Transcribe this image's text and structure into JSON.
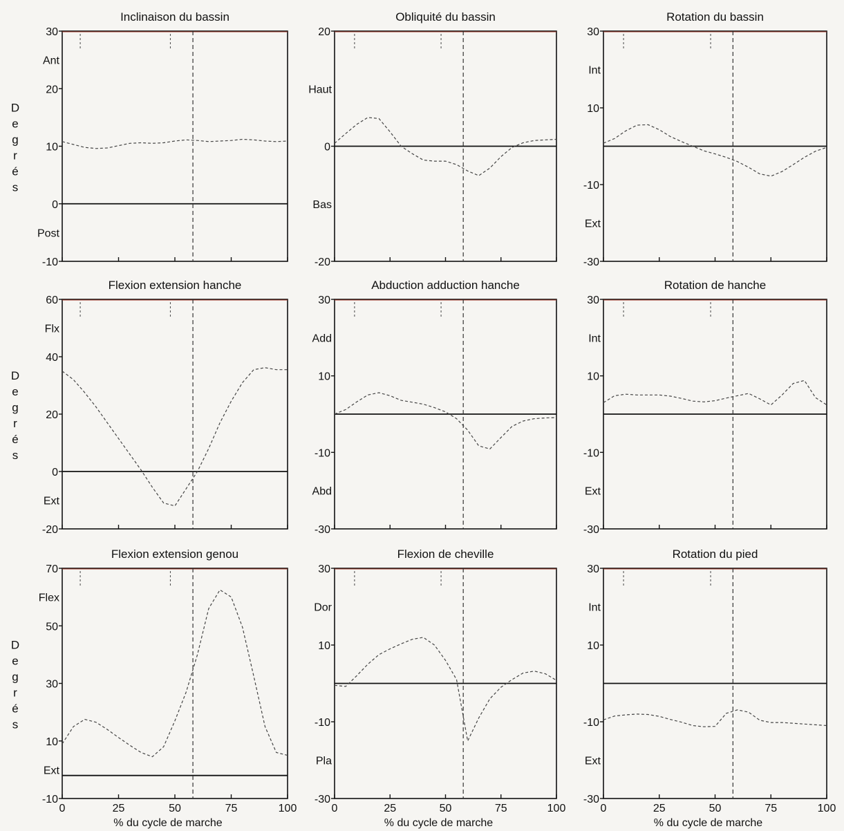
{
  "figure": {
    "ylabel_letters": [
      "D",
      "e",
      "g",
      "r",
      "é",
      "s"
    ],
    "xlabel": "% du cycle de marche"
  },
  "chart_data": [
    {
      "type": "line",
      "title": "Inclinaison du bassin",
      "ylim": [
        -10,
        30
      ],
      "yticks": [
        -10,
        0,
        10,
        20,
        30
      ],
      "xlim": [
        0,
        100
      ],
      "xticks": [
        0,
        25,
        50,
        75,
        100
      ],
      "x_tick_labels_shown": false,
      "region_labels": [
        {
          "text": "Ant",
          "y": 25
        },
        {
          "text": "Post",
          "y": -5
        }
      ],
      "reference_lines": [
        {
          "y": 0,
          "style": "solid"
        },
        {
          "x": 58,
          "style": "dashed"
        }
      ],
      "top_markers_x": [
        8,
        48
      ],
      "series": [
        {
          "x": [
            0,
            5,
            10,
            15,
            20,
            25,
            30,
            35,
            40,
            45,
            50,
            55,
            60,
            65,
            70,
            75,
            80,
            85,
            90,
            95,
            100
          ],
          "y": [
            10.8,
            10.3,
            9.8,
            9.6,
            9.7,
            10.1,
            10.5,
            10.6,
            10.5,
            10.6,
            10.9,
            11.1,
            11,
            10.8,
            10.9,
            11,
            11.2,
            11.1,
            10.9,
            10.8,
            10.9
          ]
        }
      ]
    },
    {
      "type": "line",
      "title": "Obliquité du bassin",
      "ylim": [
        -20,
        20
      ],
      "yticks": [
        -20,
        0,
        20
      ],
      "xlim": [
        0,
        100
      ],
      "xticks": [
        0,
        25,
        50,
        75,
        100
      ],
      "x_tick_labels_shown": false,
      "region_labels": [
        {
          "text": "Haut",
          "y": 10
        },
        {
          "text": "Bas",
          "y": -10
        }
      ],
      "reference_lines": [
        {
          "y": 0,
          "style": "solid"
        },
        {
          "x": 58,
          "style": "dashed"
        }
      ],
      "top_markers_x": [
        9,
        48
      ],
      "series": [
        {
          "x": [
            0,
            5,
            10,
            15,
            20,
            25,
            30,
            35,
            40,
            45,
            50,
            55,
            60,
            65,
            70,
            75,
            80,
            85,
            90,
            95,
            100
          ],
          "y": [
            0.5,
            2.2,
            3.8,
            5,
            4.8,
            2.5,
            0,
            -1.3,
            -2.4,
            -2.6,
            -2.6,
            -3.2,
            -4.3,
            -5.1,
            -3.8,
            -1.8,
            -0.2,
            0.6,
            1,
            1.1,
            1.2
          ]
        }
      ]
    },
    {
      "type": "line",
      "title": "Rotation du bassin",
      "ylim": [
        -30,
        30
      ],
      "yticks": [
        -30,
        -10,
        10,
        30
      ],
      "xlim": [
        0,
        100
      ],
      "xticks": [
        0,
        25,
        50,
        75,
        100
      ],
      "x_tick_labels_shown": false,
      "region_labels": [
        {
          "text": "Int",
          "y": 20
        },
        {
          "text": "Ext",
          "y": -20
        }
      ],
      "reference_lines": [
        {
          "y": 0,
          "style": "solid"
        },
        {
          "x": 58,
          "style": "dashed"
        }
      ],
      "top_markers_x": [
        9,
        48
      ],
      "series": [
        {
          "x": [
            0,
            5,
            10,
            15,
            20,
            25,
            30,
            35,
            40,
            45,
            50,
            55,
            60,
            65,
            70,
            75,
            80,
            85,
            90,
            95,
            100
          ],
          "y": [
            0.8,
            2,
            4,
            5.5,
            5.6,
            4.3,
            2.5,
            1.2,
            0,
            -1.2,
            -2,
            -2.9,
            -4,
            -5.5,
            -7.2,
            -7.8,
            -6.6,
            -4.8,
            -2.9,
            -1.3,
            -0.3
          ]
        }
      ]
    },
    {
      "type": "line",
      "title": "Flexion  extension hanche",
      "ylim": [
        -20,
        60
      ],
      "yticks": [
        -20,
        0,
        20,
        40,
        60
      ],
      "xlim": [
        0,
        100
      ],
      "xticks": [
        0,
        25,
        50,
        75,
        100
      ],
      "x_tick_labels_shown": false,
      "region_labels": [
        {
          "text": "Flx",
          "y": 50
        },
        {
          "text": "Ext",
          "y": -10
        }
      ],
      "reference_lines": [
        {
          "y": 0,
          "style": "solid"
        },
        {
          "x": 58,
          "style": "dashed"
        }
      ],
      "top_markers_x": [
        8,
        48
      ],
      "series": [
        {
          "x": [
            0,
            5,
            10,
            15,
            20,
            25,
            30,
            35,
            40,
            45,
            50,
            55,
            60,
            65,
            70,
            75,
            80,
            85,
            90,
            95,
            100
          ],
          "y": [
            35,
            32,
            27.5,
            22.5,
            17,
            11.5,
            6,
            0.5,
            -5.5,
            -11,
            -12,
            -6,
            0,
            8,
            17,
            24.5,
            31,
            35.5,
            36.2,
            35.5,
            35.5
          ]
        }
      ]
    },
    {
      "type": "line",
      "title": "Abduction  adduction hanche",
      "ylim": [
        -30,
        30
      ],
      "yticks": [
        -30,
        -10,
        10,
        30
      ],
      "xlim": [
        0,
        100
      ],
      "xticks": [
        0,
        25,
        50,
        75,
        100
      ],
      "x_tick_labels_shown": false,
      "region_labels": [
        {
          "text": "Add",
          "y": 20
        },
        {
          "text": "Abd",
          "y": -20
        }
      ],
      "reference_lines": [
        {
          "y": 0,
          "style": "solid"
        },
        {
          "x": 58,
          "style": "dashed"
        }
      ],
      "top_markers_x": [
        9,
        48
      ],
      "series": [
        {
          "x": [
            0,
            5,
            10,
            15,
            20,
            25,
            30,
            35,
            40,
            45,
            50,
            55,
            60,
            65,
            70,
            75,
            80,
            85,
            90,
            95,
            100
          ],
          "y": [
            0,
            1.2,
            3.2,
            5,
            5.6,
            4.8,
            3.6,
            3.1,
            2.6,
            1.7,
            0.6,
            -1.2,
            -4.2,
            -8.3,
            -9.1,
            -6.1,
            -3.2,
            -1.8,
            -1.2,
            -1,
            -0.9
          ]
        }
      ]
    },
    {
      "type": "line",
      "title": "Rotation de hanche",
      "ylim": [
        -30,
        30
      ],
      "yticks": [
        -30,
        -10,
        10,
        30
      ],
      "xlim": [
        0,
        100
      ],
      "xticks": [
        0,
        25,
        50,
        75,
        100
      ],
      "x_tick_labels_shown": false,
      "region_labels": [
        {
          "text": "Int",
          "y": 20
        },
        {
          "text": "Ext",
          "y": -20
        }
      ],
      "reference_lines": [
        {
          "y": 0,
          "style": "solid"
        },
        {
          "x": 58,
          "style": "dashed"
        }
      ],
      "top_markers_x": [
        9,
        48
      ],
      "series": [
        {
          "x": [
            0,
            5,
            10,
            15,
            20,
            25,
            30,
            35,
            40,
            45,
            50,
            55,
            60,
            65,
            70,
            75,
            80,
            85,
            90,
            95,
            100
          ],
          "y": [
            3,
            4.8,
            5.2,
            5,
            5,
            5,
            4.7,
            4.1,
            3.4,
            3.2,
            3.5,
            4.2,
            4.8,
            5.4,
            4,
            2.4,
            5,
            8,
            8.8,
            4.3,
            2.4
          ]
        }
      ]
    },
    {
      "type": "line",
      "title": "Flexion extension genou",
      "ylim": [
        -10,
        70
      ],
      "yticks": [
        -10,
        10,
        30,
        50,
        70
      ],
      "xlim": [
        0,
        100
      ],
      "xticks": [
        0,
        25,
        50,
        75,
        100
      ],
      "xtick_labels": [
        "0",
        "25",
        "50",
        "75",
        "100"
      ],
      "xlabel": "% du cycle de marche",
      "region_labels": [
        {
          "text": "Flex",
          "y": 60
        },
        {
          "text": "Ext",
          "y": 0
        }
      ],
      "reference_lines": [
        {
          "y": -2,
          "style": "solid"
        },
        {
          "x": 58,
          "style": "dashed"
        }
      ],
      "top_markers_x": [
        8,
        48
      ],
      "series": [
        {
          "x": [
            0,
            5,
            10,
            15,
            20,
            25,
            30,
            35,
            40,
            45,
            50,
            55,
            60,
            65,
            70,
            75,
            80,
            85,
            90,
            95,
            100
          ],
          "y": [
            9,
            15,
            17.5,
            16.5,
            14,
            11.2,
            8.5,
            6,
            4.5,
            8,
            17,
            27,
            40,
            56,
            62.5,
            60,
            49.5,
            32.5,
            15,
            6,
            5
          ]
        }
      ]
    },
    {
      "type": "line",
      "title": "Flexion de cheville",
      "ylim": [
        -30,
        30
      ],
      "yticks": [
        -30,
        -10,
        10,
        30
      ],
      "xlim": [
        0,
        100
      ],
      "xticks": [
        0,
        25,
        50,
        75,
        100
      ],
      "xtick_labels": [
        "0",
        "25",
        "50",
        "75",
        "100"
      ],
      "xlabel": "% du cycle de marche",
      "region_labels": [
        {
          "text": "Dor",
          "y": 20
        },
        {
          "text": "Pla",
          "y": -20
        }
      ],
      "reference_lines": [
        {
          "y": 0,
          "style": "solid"
        },
        {
          "x": 58,
          "style": "dashed"
        }
      ],
      "top_markers_x": [
        9,
        48
      ],
      "series": [
        {
          "x": [
            0,
            5,
            10,
            15,
            20,
            25,
            30,
            35,
            40,
            45,
            50,
            55,
            60,
            65,
            70,
            75,
            80,
            85,
            90,
            95,
            100
          ],
          "y": [
            -0.5,
            -0.8,
            2,
            5,
            7.5,
            9,
            10.3,
            11.5,
            12,
            10,
            6,
            1,
            -15,
            -9,
            -4,
            -1,
            1,
            2.7,
            3.2,
            2.5,
            0.8
          ]
        }
      ]
    },
    {
      "type": "line",
      "title": "Rotation du pied",
      "ylim": [
        -30,
        30
      ],
      "yticks": [
        -30,
        -10,
        10,
        30
      ],
      "xlim": [
        0,
        100
      ],
      "xticks": [
        0,
        25,
        50,
        75,
        100
      ],
      "xtick_labels": [
        "0",
        "25",
        "50",
        "75",
        "100"
      ],
      "xlabel": "% du cycle de marche",
      "region_labels": [
        {
          "text": "Int",
          "y": 20
        },
        {
          "text": "Ext",
          "y": -20
        }
      ],
      "reference_lines": [
        {
          "y": 0,
          "style": "solid"
        },
        {
          "x": 58,
          "style": "dashed"
        }
      ],
      "top_markers_x": [
        9,
        48
      ],
      "series": [
        {
          "x": [
            0,
            5,
            10,
            15,
            20,
            25,
            30,
            35,
            40,
            45,
            50,
            55,
            60,
            65,
            70,
            75,
            80,
            85,
            90,
            95,
            100
          ],
          "y": [
            -9.5,
            -8.5,
            -8.2,
            -8,
            -8.1,
            -8.6,
            -9.4,
            -10.1,
            -11,
            -11.3,
            -11.2,
            -7.8,
            -6.9,
            -7.5,
            -9.6,
            -10.2,
            -10.2,
            -10.4,
            -10.6,
            -10.8,
            -11
          ]
        }
      ]
    }
  ]
}
